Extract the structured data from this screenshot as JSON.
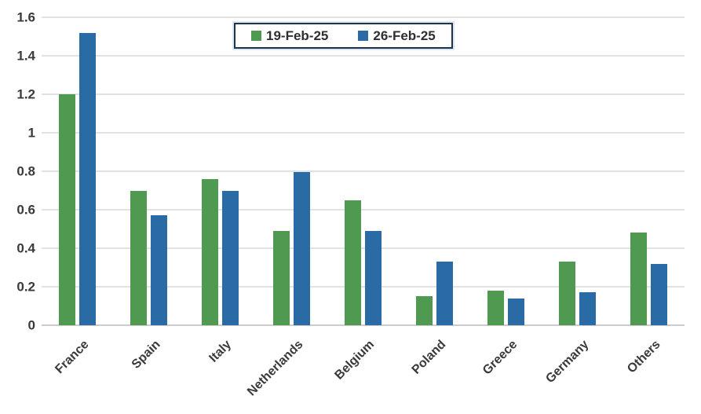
{
  "chart_data": {
    "type": "bar",
    "title": "",
    "categories": [
      "France",
      "Spain",
      "Italy",
      "Netherlands",
      "Belgium",
      "Poland",
      "Greece",
      "Germany",
      "Others"
    ],
    "series": [
      {
        "name": "19-Feb-25",
        "color": "#4f9950",
        "values": [
          1.2,
          0.7,
          0.76,
          0.49,
          0.65,
          0.15,
          0.18,
          0.33,
          0.48
        ]
      },
      {
        "name": "26-Feb-25",
        "color": "#2a6ba6",
        "values": [
          1.52,
          0.57,
          0.7,
          0.795,
          0.49,
          0.33,
          0.14,
          0.17,
          0.32
        ]
      }
    ],
    "xlabel": "",
    "ylabel": "",
    "ylim": [
      0,
      1.6
    ],
    "ytick_step": 0.2,
    "ytick_labels": [
      "0",
      "0.2",
      "0.4",
      "0.6",
      "0.8",
      "1",
      "1.2",
      "1.4",
      "1.6"
    ],
    "grid": "horizontal",
    "legend_position": "top-center"
  },
  "colors": {
    "grid": "#e2e2e2",
    "axis_line": "#cccccc",
    "tick_text": "#3a3a3a",
    "legend_border": "#203449",
    "legend_halo": "#dbe7f4",
    "background": "#ffffff"
  }
}
